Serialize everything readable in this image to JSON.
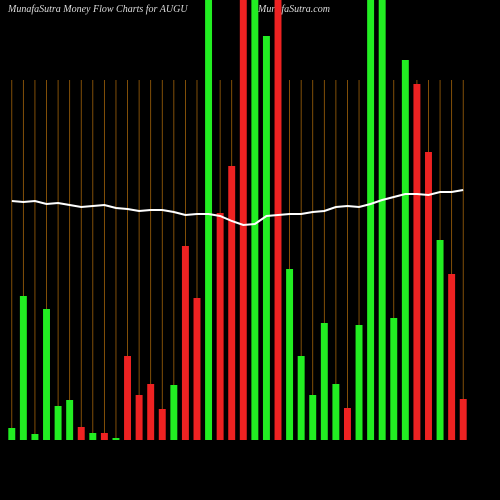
{
  "chart_data": {
    "type": "bar",
    "title": "MunafaSutra  Money Flow  Charts for AUGU",
    "subtitle": "MunafaSutra.com",
    "categories": [
      null,
      null,
      null,
      null,
      null,
      null,
      null,
      null,
      null,
      null,
      null,
      null,
      null,
      null,
      null,
      null,
      null,
      null,
      null,
      null,
      null,
      null,
      null,
      null,
      null,
      null,
      null,
      null,
      null,
      null,
      null,
      null,
      null,
      null,
      null,
      null,
      null,
      null,
      null,
      null
    ],
    "ylim": [
      0,
      440
    ],
    "grid": true,
    "grid_color": "#a0620a",
    "series": [
      {
        "type": "bar",
        "values": [
          12,
          144,
          6,
          131,
          34,
          40,
          13,
          7,
          7,
          2,
          84,
          45,
          56,
          31,
          55,
          194,
          142,
          440,
          227,
          274,
          440,
          440,
          404,
          440,
          171,
          84,
          45,
          117,
          56,
          32,
          115,
          440,
          440,
          122,
          380,
          356,
          288,
          200,
          166,
          41
        ],
        "colors": [
          "#22ee22",
          "#22ee22",
          "#22ee22",
          "#22ee22",
          "#22ee22",
          "#22ee22",
          "#ee2222",
          "#22ee22",
          "#ee2222",
          "#22ee22",
          "#ee2222",
          "#ee2222",
          "#ee2222",
          "#ee2222",
          "#22ee22",
          "#ee2222",
          "#ee2222",
          "#22ee22",
          "#ee2222",
          "#ee2222",
          "#ee2222",
          "#22ee22",
          "#22ee22",
          "#ee2222",
          "#22ee22",
          "#22ee22",
          "#22ee22",
          "#22ee22",
          "#22ee22",
          "#ee2222",
          "#22ee22",
          "#22ee22",
          "#22ee22",
          "#22ee22",
          "#22ee22",
          "#ee2222",
          "#ee2222",
          "#22ee22",
          "#ee2222",
          "#ee2222"
        ]
      },
      {
        "type": "line",
        "color": "#ffffff",
        "values": [
          239,
          238,
          239,
          236,
          237,
          235,
          233,
          234,
          235,
          232,
          231,
          229,
          230,
          230,
          228,
          225,
          226,
          226,
          224,
          219,
          215,
          216,
          224,
          225,
          226,
          226,
          228,
          229,
          233,
          234,
          233,
          236,
          240,
          243,
          246,
          246,
          245,
          248,
          248,
          250
        ]
      }
    ]
  }
}
